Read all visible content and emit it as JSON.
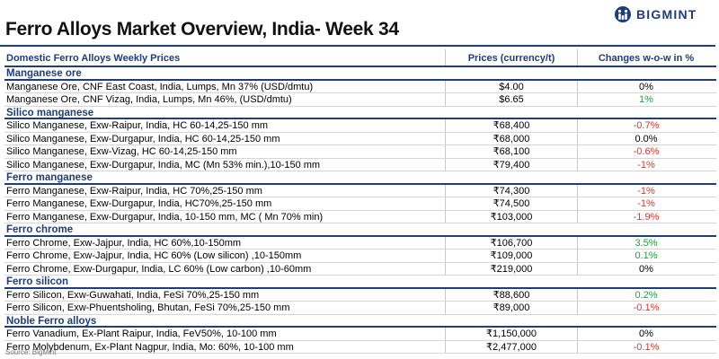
{
  "title": "Ferro Alloys Market Overview, India- Week 34",
  "brand": {
    "name": "BIGMINT",
    "color": "#1f3d7a"
  },
  "table": {
    "headers": [
      "Domestic Ferro Alloys Weekly Prices",
      "Prices (currency/t)",
      "Changes w-o-w in %"
    ],
    "sections": [
      {
        "title": "Manganese ore",
        "rows": [
          {
            "name": "Manganese Ore, CNF East Coast, India, Lumps, Mn 37% (USD/dmtu)",
            "price": "$4.00",
            "change": "0%",
            "trend": "flat"
          },
          {
            "name": "Manganese Ore, CNF Vizag, India, Lumps, Mn 46%, (USD/dmtu)",
            "price": "$6.65",
            "change": "1%",
            "trend": "pos"
          }
        ]
      },
      {
        "title": "Silico manganese",
        "rows": [
          {
            "name": "Silico Manganese, Exw-Raipur, India, HC 60-14,25-150 mm",
            "price": "₹68,400",
            "change": "-0.7%",
            "trend": "neg"
          },
          {
            "name": "Silico Manganese, Exw-Durgapur, India, HC 60-14,25-150 mm",
            "price": "₹68,000",
            "change": "0.0%",
            "trend": "flat"
          },
          {
            "name": "Silico Manganese, Exw-Vizag, HC 60-14,25-150 mm",
            "price": "₹68,100",
            "change": "-0.6%",
            "trend": "neg"
          },
          {
            "name": "Silico Manganese, Exw-Durgapur, India, MC (Mn 53% min.),10-150 mm",
            "price": "₹79,400",
            "change": "-1%",
            "trend": "neg"
          }
        ]
      },
      {
        "title": "Ferro manganese",
        "rows": [
          {
            "name": "Ferro Manganese, Exw-Raipur, India, HC 70%,25-150 mm",
            "price": "₹74,300",
            "change": "-1%",
            "trend": "neg"
          },
          {
            "name": "Ferro Manganese, Exw-Durgapur, India, HC70%,25-150 mm",
            "price": "₹74,500",
            "change": "-1%",
            "trend": "neg"
          },
          {
            "name": "Ferro Manganese, Exw-Durgapur, India, 10-150 mm, MC ( Mn 70% min)",
            "price": "₹103,000",
            "change": "-1.9%",
            "trend": "neg"
          }
        ]
      },
      {
        "title": "Ferro chrome",
        "rows": [
          {
            "name": "Ferro Chrome, Exw-Jajpur, India, HC 60%,10-150mm",
            "price": "₹106,700",
            "change": "3.5%",
            "trend": "pos"
          },
          {
            "name": "Ferro Chrome, Exw-Jajpur, India, HC 60% (Low silicon) ,10-150mm",
            "price": "₹109,000",
            "change": "0.1%",
            "trend": "pos"
          },
          {
            "name": "Ferro Chrome, Exw-Durgapur, India, LC 60% (Low carbon) ,10-60mm",
            "price": "₹219,000",
            "change": "0%",
            "trend": "flat"
          }
        ]
      },
      {
        "title": "Ferro silicon",
        "rows": [
          {
            "name": "Ferro Silicon, Exw-Guwahati, India, FeSi 70%,25-150 mm",
            "price": "₹88,600",
            "change": "0.2%",
            "trend": "pos"
          },
          {
            "name": "Ferro Silicon, Exw-Phuentsholing, Bhutan, FeSi 70%,25-150 mm",
            "price": "₹89,000",
            "change": "-0.1%",
            "trend": "neg"
          }
        ]
      },
      {
        "title": "Noble Ferro alloys",
        "rows": [
          {
            "name": "Ferro Vanadium, Ex-Plant Raipur, India, FeV50%, 10-100 mm",
            "price": "₹1,150,000",
            "change": "0%",
            "trend": "flat"
          },
          {
            "name": "Ferro Molybdenum, Ex-Plant Nagpur, India, Mo: 60%, 10-100 mm",
            "price": "₹2,477,000",
            "change": "-0.1%",
            "trend": "neg"
          }
        ]
      }
    ]
  },
  "source": "Source: BigMint"
}
